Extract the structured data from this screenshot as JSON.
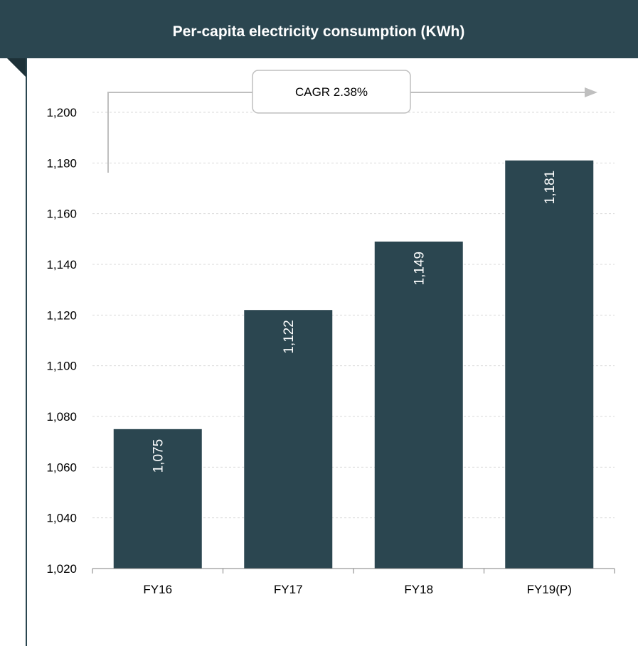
{
  "colors": {
    "header_bg": "#2b4650",
    "bar_fill": "#2b4650",
    "header_text": "#ffffff",
    "data_label": "#ffffff",
    "gridline": "#d9d9d9",
    "arrow": "#bfbfbf",
    "frame_line": "#2b4650"
  },
  "chart_data": {
    "type": "bar",
    "title": "Per-capita electricity consumption (KWh)",
    "categories": [
      "FY16",
      "FY17",
      "FY18",
      "FY19(P)"
    ],
    "values": [
      1075,
      1122,
      1149,
      1181
    ],
    "value_labels": [
      "1,075",
      "1,122",
      "1,149",
      "1,181"
    ],
    "ylim": [
      1020,
      1200
    ],
    "yticks": [
      1020,
      1040,
      1060,
      1080,
      1100,
      1120,
      1140,
      1160,
      1180,
      1200
    ],
    "ytick_labels": [
      "1,020",
      "1,040",
      "1,060",
      "1,080",
      "1,100",
      "1,120",
      "1,140",
      "1,160",
      "1,180",
      "1,200"
    ],
    "grid": true,
    "legend": "none",
    "annotation": {
      "text": "CAGR 2.38%"
    }
  }
}
